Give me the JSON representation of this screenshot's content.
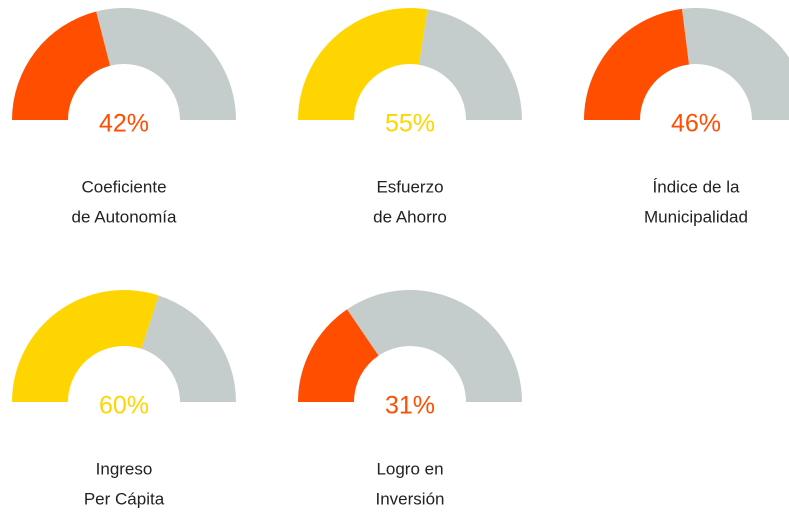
{
  "chart_data": [
    {
      "type": "gauge",
      "title": [
        "Coeficiente",
        "de Autonomía"
      ],
      "value": 42,
      "value_label": "42%",
      "ylim": [
        0,
        100
      ],
      "color": "#ff4e00",
      "track_color": "#c5cccc"
    },
    {
      "type": "gauge",
      "title": [
        "Esfuerzo",
        "de Ahorro"
      ],
      "value": 55,
      "value_label": "55%",
      "ylim": [
        0,
        100
      ],
      "color": "#ffd500",
      "track_color": "#c5cccc"
    },
    {
      "type": "gauge",
      "title": [
        "Índice de la",
        "Municipalidad"
      ],
      "value": 46,
      "value_label": "46%",
      "ylim": [
        0,
        100
      ],
      "color": "#ff4e00",
      "track_color": "#c5cccc"
    },
    {
      "type": "gauge",
      "title": [
        "Ingreso",
        "Per Cápita"
      ],
      "value": 60,
      "value_label": "60%",
      "ylim": [
        0,
        100
      ],
      "color": "#ffd500",
      "track_color": "#c5cccc"
    },
    {
      "type": "gauge",
      "title": [
        "Logro en",
        "Inversión"
      ],
      "value": 31,
      "value_label": "31%",
      "ylim": [
        0,
        100
      ],
      "color": "#ff4e00",
      "track_color": "#c5cccc"
    }
  ]
}
